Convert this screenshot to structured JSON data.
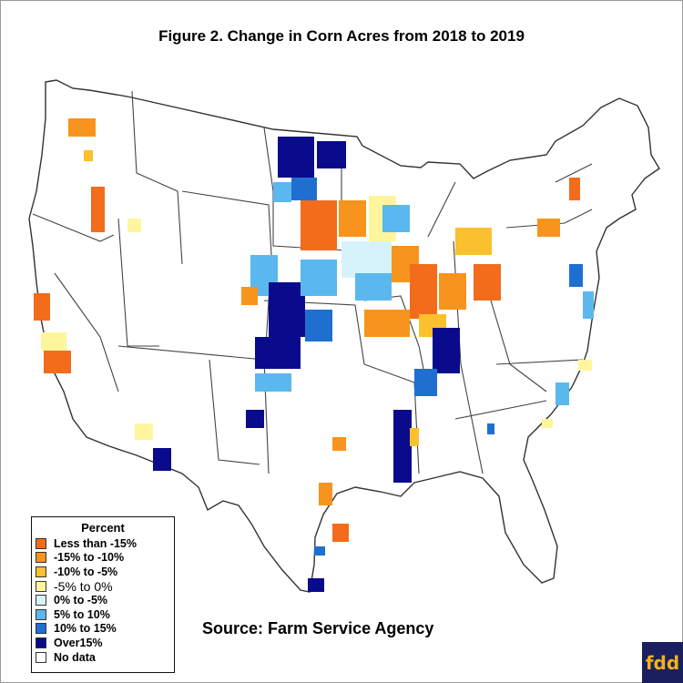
{
  "title": "Figure 2.  Change in Corn Acres from 2018 to 2019",
  "source": "Source: Farm Service Agency",
  "logo_text": "fdd",
  "legend": {
    "title": "Percent",
    "items": [
      {
        "label": "Less than -15%",
        "color": "#f26c1c"
      },
      {
        "label": "-15% to -10%",
        "color": "#f7941d"
      },
      {
        "label": "-10% to -5%",
        "color": "#fbc02d"
      },
      {
        "label": "-5% to 0%",
        "color": "#fff59d"
      },
      {
        "label": "0% to -5%",
        "color": "#d6f3fb"
      },
      {
        "label": "5% to 10%",
        "color": "#5ab8ee"
      },
      {
        "label": "10% to 15%",
        "color": "#1f6fd1"
      },
      {
        "label": "Over15%",
        "color": "#0a0a8c"
      },
      {
        "label": "No data",
        "color": "#ffffff"
      }
    ]
  }
}
